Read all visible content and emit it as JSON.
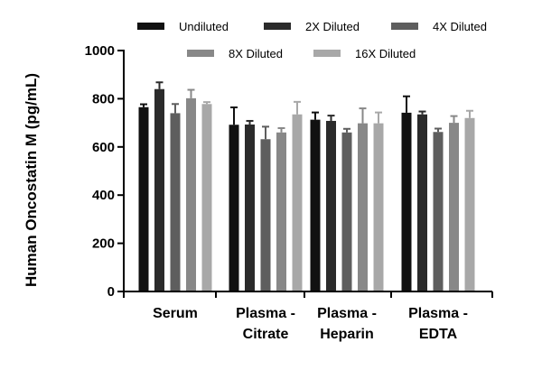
{
  "chart_data": {
    "type": "bar",
    "title": "",
    "xlabel": "",
    "ylabel": "Human Oncostatin M (pg/mL)",
    "ylim": [
      0,
      1000
    ],
    "yticks": [
      "0",
      "200",
      "400",
      "600",
      "800",
      "1000"
    ],
    "ytick_values": [
      0,
      200,
      400,
      600,
      800,
      1000
    ],
    "grid": false,
    "legend_position": "top",
    "categories": [
      [
        "Serum"
      ],
      [
        "Plasma -",
        "Citrate"
      ],
      [
        "Plasma -",
        "Heparin"
      ],
      [
        "Plasma -",
        "EDTA"
      ]
    ],
    "series": [
      {
        "name": "Undiluted",
        "color": "#111111",
        "values": [
          765,
          692,
          713,
          742
        ],
        "errors": [
          12,
          72,
          30,
          68
        ]
      },
      {
        "name": "2X Diluted",
        "color": "#2b2b2b",
        "values": [
          840,
          693,
          708,
          735
        ],
        "errors": [
          28,
          15,
          22,
          12
        ]
      },
      {
        "name": "4X Diluted",
        "color": "#5e5e5e",
        "values": [
          740,
          632,
          660,
          662
        ],
        "errors": [
          38,
          52,
          15,
          14
        ]
      },
      {
        "name": "8X Diluted",
        "color": "#888888",
        "values": [
          802,
          660,
          698,
          700
        ],
        "errors": [
          35,
          18,
          62,
          28
        ]
      },
      {
        "name": "16X Diluted",
        "color": "#a8a8a8",
        "values": [
          778,
          735,
          698,
          720
        ],
        "errors": [
          8,
          52,
          45,
          30
        ]
      }
    ]
  }
}
